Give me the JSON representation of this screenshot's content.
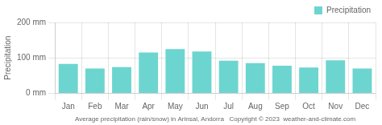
{
  "chart_data": {
    "type": "bar",
    "categories": [
      "Jan",
      "Feb",
      "Mar",
      "Apr",
      "May",
      "Jun",
      "Jul",
      "Aug",
      "Sep",
      "Oct",
      "Nov",
      "Dec"
    ],
    "series": [
      {
        "name": "Precipitation",
        "color": "#6dd5d0",
        "values": [
          83,
          70,
          74,
          115,
          125,
          118,
          92,
          85,
          78,
          73,
          93,
          70
        ]
      }
    ],
    "ylabel": "Precipitation",
    "xlabel": "Average precipitation (rain/snow) in Arinsal, Andorra   Copyright © 2023  weather-and-climate.com",
    "ylim": [
      0,
      200
    ],
    "yticks": [
      {
        "value": 0,
        "label": "0 mm"
      },
      {
        "value": 100,
        "label": "100 mm"
      },
      {
        "value": 200,
        "label": "200 mm"
      }
    ],
    "grid": true,
    "legend": "upper right"
  }
}
